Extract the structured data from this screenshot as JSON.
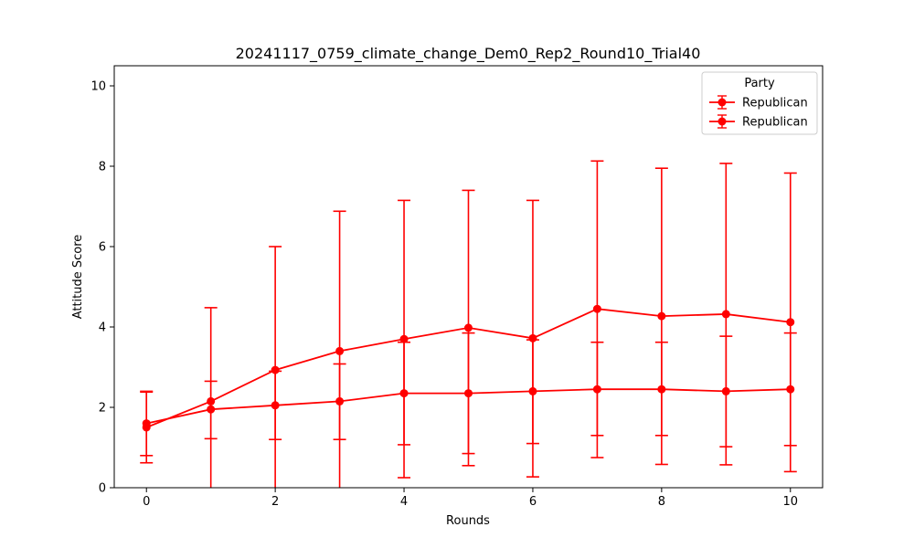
{
  "chart_data": {
    "type": "line",
    "title": "20241117_0759_climate_change_Dem0_Rep2_Round10_Trial40",
    "xlabel": "Rounds",
    "ylabel": "Attitude Score",
    "xlim": [
      -0.5,
      10.5
    ],
    "ylim": [
      0,
      10.5
    ],
    "xticks": [
      0,
      2,
      4,
      6,
      8,
      10
    ],
    "yticks": [
      0,
      2,
      4,
      6,
      8,
      10
    ],
    "grid": false,
    "legend": {
      "title": "Party",
      "placement": "top-right"
    },
    "series": [
      {
        "name": "Republican",
        "color": "#ff0000",
        "x": [
          0,
          1,
          2,
          3,
          4,
          5,
          6,
          7,
          8,
          9,
          10
        ],
        "y": [
          1.5,
          2.15,
          2.93,
          3.4,
          3.7,
          3.98,
          3.72,
          4.45,
          4.27,
          4.32,
          4.12
        ],
        "err_low": [
          0.62,
          -1.0,
          -1.0,
          -1.0,
          0.25,
          0.55,
          0.27,
          0.75,
          0.58,
          0.57,
          0.4
        ],
        "err_high": [
          2.38,
          4.48,
          6.0,
          6.88,
          7.15,
          7.4,
          7.15,
          8.13,
          7.95,
          8.07,
          7.83
        ]
      },
      {
        "name": "Republican",
        "color": "#ff0000",
        "x": [
          0,
          1,
          2,
          3,
          4,
          5,
          6,
          7,
          8,
          9,
          10
        ],
        "y": [
          1.6,
          1.95,
          2.05,
          2.15,
          2.35,
          2.35,
          2.4,
          2.45,
          2.45,
          2.4,
          2.45
        ],
        "err_low": [
          0.8,
          1.22,
          1.2,
          1.2,
          1.07,
          0.85,
          1.1,
          1.3,
          1.3,
          1.02,
          1.05
        ],
        "err_high": [
          2.4,
          2.65,
          2.9,
          3.08,
          3.62,
          3.85,
          3.68,
          3.62,
          3.62,
          3.77,
          3.85
        ]
      }
    ]
  }
}
